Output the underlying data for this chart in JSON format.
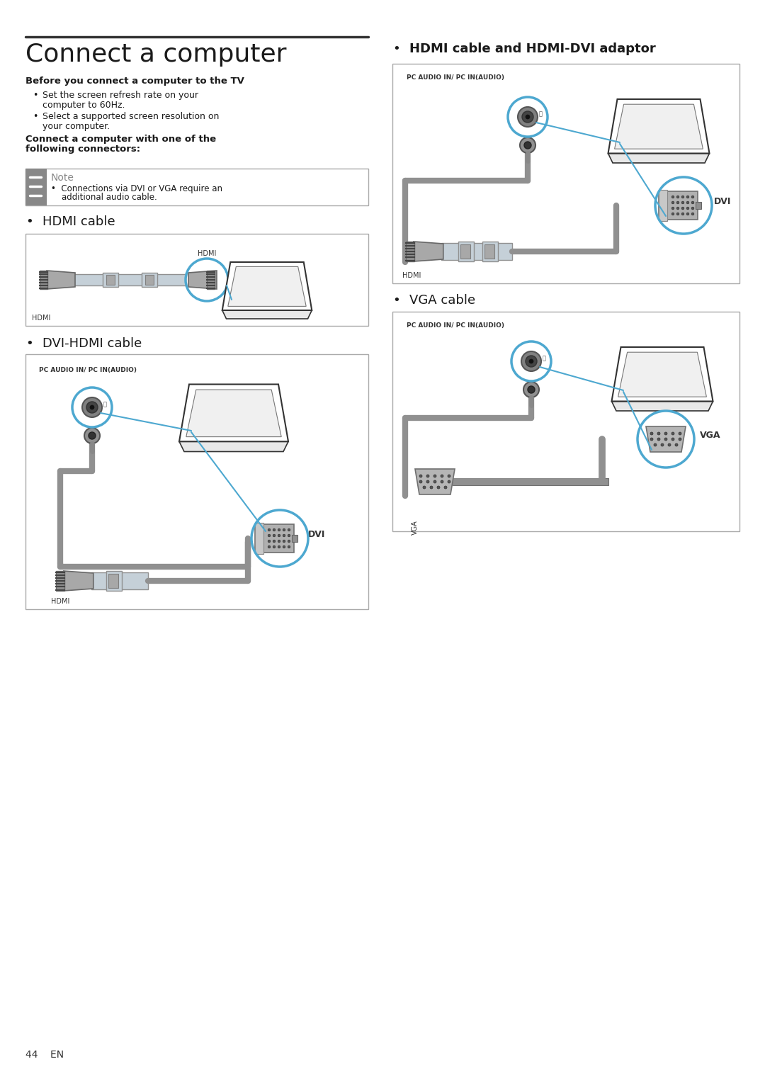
{
  "bg_color": "#ffffff",
  "title": "Connect a computer",
  "title_fontsize": 26,
  "title_color": "#1a1a1a",
  "body_color": "#1a1a1a",
  "subtitle1": "Before you connect a computer to the TV",
  "bullet1a": "Set the screen refresh rate on your",
  "bullet1b": "computer to 60Hz.",
  "bullet2a": "Select a supported screen resolution on",
  "bullet2b": "your computer.",
  "connect_line1": "Connect a computer with one of the",
  "connect_line2": "following connectors:",
  "note_label": "Note",
  "note_text1": "•  Connections via DVI or VGA require an",
  "note_text2": "    additional audio cable.",
  "item1": "HDMI cable",
  "item2": "DVI-HDMI cable",
  "item3": "HDMI cable and HDMI-DVI adaptor",
  "item4": "VGA cable",
  "label_hdmi": "HDMI",
  "label_dvi": "DVI",
  "label_vga": "VGA",
  "label_pc_audio": "PC AUDIO IN/ PC IN(AUDIO)",
  "page_num": "44    EN",
  "line_color": "#2a2a2a",
  "box_border": "#999999",
  "cable_blue_gray": "#c5d0d8",
  "cable_gray": "#a8a8a8",
  "cable_dark": "#686868",
  "blue_accent": "#4da8d0",
  "note_icon_bg": "#808080",
  "hdmi_ribs_color": "#555555"
}
